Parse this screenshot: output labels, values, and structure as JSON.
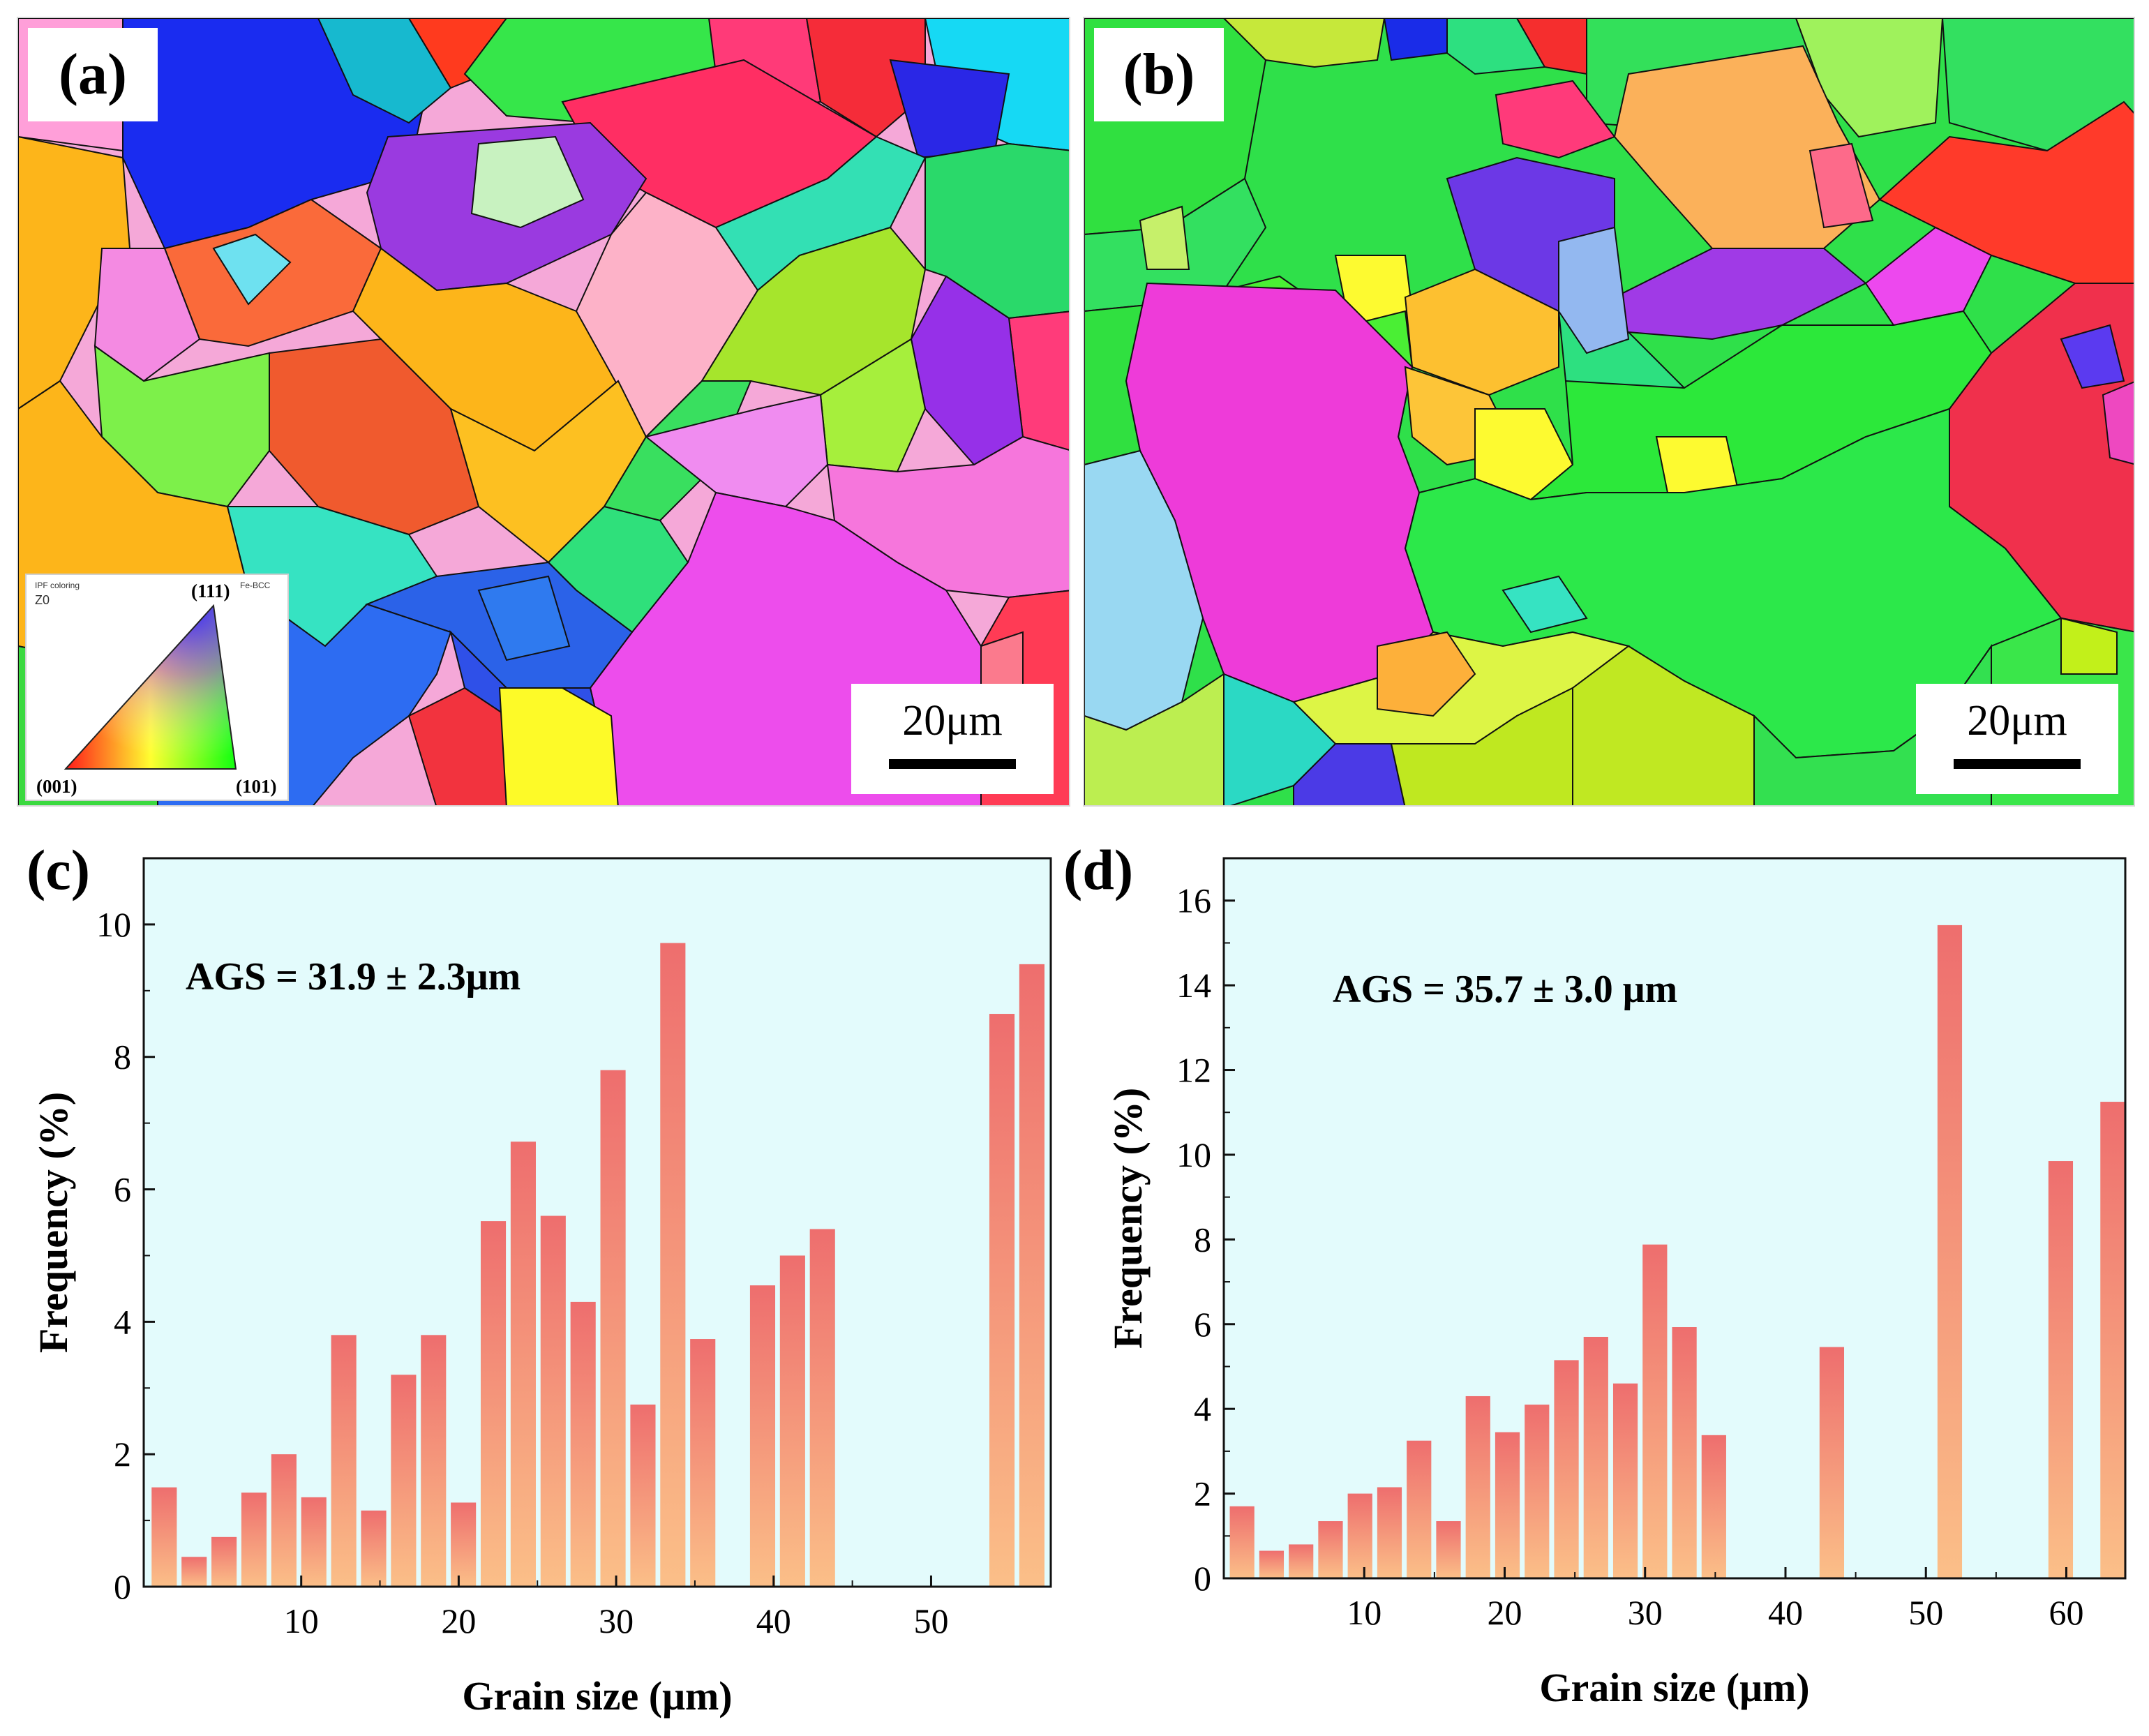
{
  "figure": {
    "panel_a": {
      "label": "(a)",
      "scale_bar_text": "20μm",
      "legend": {
        "title": "IPF coloring",
        "axis": "Z0",
        "phase": "Fe-BCC",
        "corner_111": "(111)",
        "corner_001": "(001)",
        "corner_101": "(101)"
      }
    },
    "panel_b": {
      "label": "(b)",
      "scale_bar_text": "20μm"
    }
  },
  "chart_data": [
    {
      "panel": "(c)",
      "type": "bar",
      "title": "",
      "annotation": "AGS = 31.9 ± 2.3μm",
      "xlabel": "Grain size (μm)",
      "ylabel": "Frequency (%)",
      "xlim": [
        0,
        57.6
      ],
      "ylim": [
        0,
        11
      ],
      "xticks": [
        10,
        20,
        30,
        40,
        50
      ],
      "yticks": [
        0,
        2,
        4,
        6,
        8,
        10
      ],
      "bar_width": 1.6,
      "x": [
        1.3,
        3.2,
        5.1,
        7.0,
        8.9,
        10.8,
        12.7,
        14.6,
        16.5,
        18.4,
        20.3,
        22.2,
        24.1,
        26.0,
        27.9,
        29.8,
        31.7,
        33.6,
        35.5,
        39.3,
        41.2,
        43.1,
        54.5,
        56.4
      ],
      "values": [
        1.5,
        0.45,
        0.75,
        1.42,
        2.0,
        1.35,
        3.8,
        1.15,
        3.2,
        3.8,
        1.27,
        5.52,
        6.72,
        5.6,
        4.3,
        7.8,
        2.75,
        9.72,
        3.74,
        4.55,
        5.0,
        5.4,
        8.65,
        9.4
      ]
    },
    {
      "panel": "(d)",
      "type": "bar",
      "title": "",
      "annotation": "AGS = 35.7 ± 3.0 μm",
      "xlabel": "Grain size (μm)",
      "ylabel": "Frequency (%)",
      "xlim": [
        0,
        64.2
      ],
      "ylim": [
        0,
        17
      ],
      "xticks": [
        10,
        20,
        30,
        40,
        50,
        60
      ],
      "yticks": [
        0,
        2,
        4,
        6,
        8,
        10,
        12,
        14,
        16
      ],
      "bar_width": 1.75,
      "x": [
        1.3,
        3.4,
        5.5,
        7.6,
        9.7,
        11.8,
        13.9,
        16.0,
        18.1,
        20.2,
        22.3,
        24.4,
        26.5,
        28.6,
        30.7,
        32.8,
        34.9,
        43.3,
        51.7,
        59.6,
        63.3
      ],
      "values": [
        1.7,
        0.65,
        0.8,
        1.35,
        2.0,
        2.15,
        3.25,
        1.35,
        4.3,
        3.45,
        4.1,
        5.15,
        5.7,
        4.6,
        7.88,
        5.93,
        3.38,
        5.46,
        15.42,
        9.85,
        11.25
      ]
    }
  ]
}
